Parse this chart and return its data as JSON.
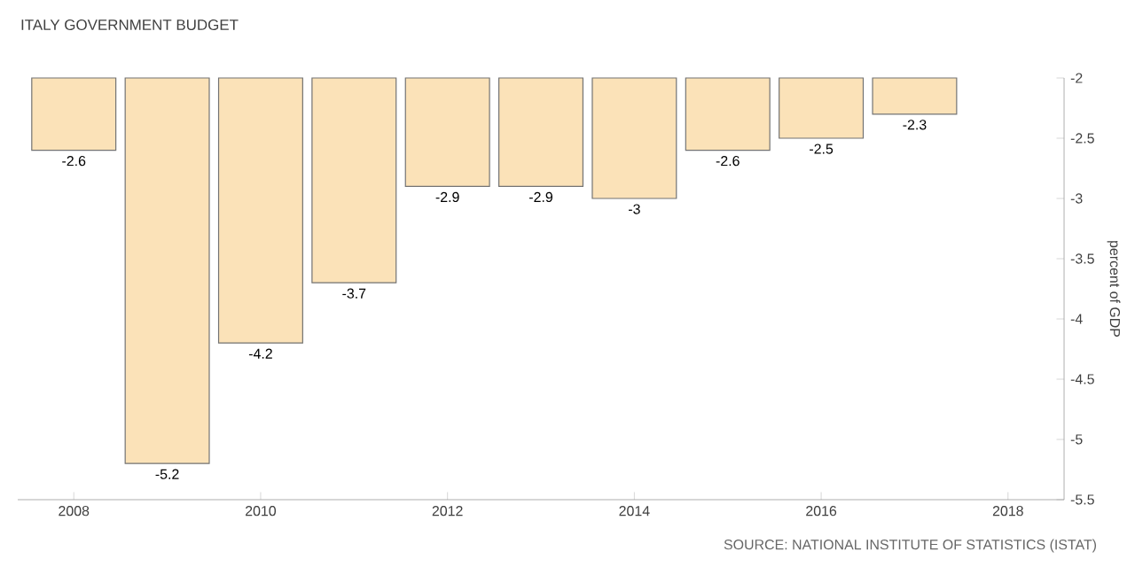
{
  "chart_data": {
    "type": "bar",
    "title": "ITALY GOVERNMENT BUDGET",
    "ylabel": "percent of GDP",
    "x": [
      2008,
      2009,
      2010,
      2011,
      2012,
      2013,
      2014,
      2015,
      2016,
      2017
    ],
    "values": [
      -2.6,
      -5.2,
      -4.2,
      -3.7,
      -2.9,
      -2.9,
      -3,
      -2.6,
      -2.5,
      -2.3
    ],
    "color": "#fbe2b8",
    "data_labels": true,
    "xlim": [
      2007.4,
      2018.6
    ],
    "xticks": [
      2008,
      2010,
      2012,
      2014,
      2016,
      2018
    ],
    "ylim": [
      -5.5,
      -2
    ],
    "yticks": [
      -2,
      -2.5,
      -3,
      -3.5,
      -4,
      -4.5,
      -5,
      -5.5
    ],
    "grid": false,
    "annotations": [
      "SOURCE: NATIONAL INSTITUTE OF STATISTICS (ISTAT)"
    ]
  }
}
